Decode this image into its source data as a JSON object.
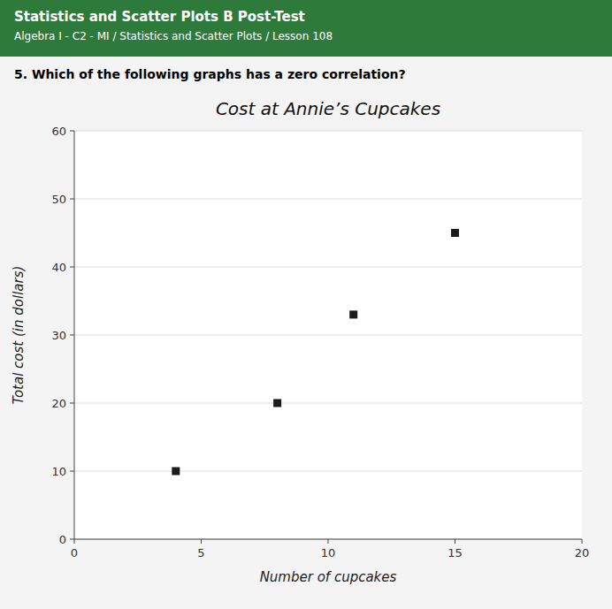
{
  "chart_data": {
    "type": "scatter",
    "title": "Cost at Annie’s Cupcakes",
    "xlabel": "Number of cupcakes",
    "ylabel": "Total cost (in dollars)",
    "x": [
      4,
      8,
      11,
      15
    ],
    "values": [
      10,
      20,
      33,
      45
    ],
    "color": "#1a1a1a",
    "marker": "square",
    "xlim": [
      0,
      20
    ],
    "ylim": [
      0,
      60
    ],
    "xticks": [
      0,
      5,
      10,
      15,
      20
    ],
    "yticks": [
      0,
      10,
      20,
      30,
      40,
      50,
      60
    ],
    "grid": true,
    "annotations": [
      "Statistics and Scatter Plots B Post-Test",
      "Algebra I - C2 - MI / Statistics and Scatter Plots / Lesson 108",
      "5. Which of the following graphs has a zero correlation?"
    ]
  }
}
